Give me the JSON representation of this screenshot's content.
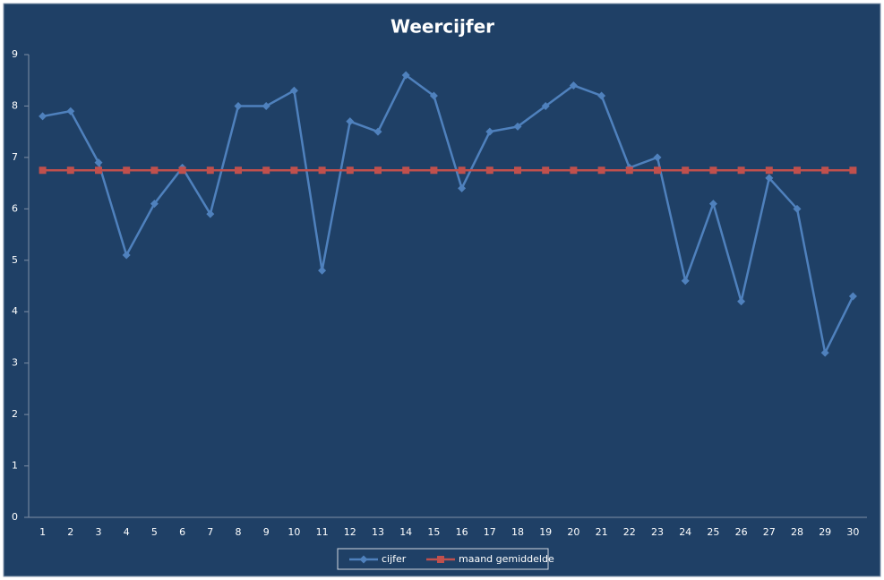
{
  "chart_data": {
    "type": "line",
    "title": "Weercijfer",
    "categories": [
      1,
      2,
      3,
      4,
      5,
      6,
      7,
      8,
      9,
      10,
      11,
      12,
      13,
      14,
      15,
      16,
      17,
      18,
      19,
      20,
      21,
      22,
      23,
      24,
      25,
      26,
      27,
      28,
      29,
      30
    ],
    "series": [
      {
        "name": "cijfer",
        "color": "#4f81bd",
        "marker": "diamond",
        "values": [
          7.8,
          7.9,
          6.9,
          5.1,
          6.1,
          6.8,
          5.9,
          8.0,
          8.0,
          8.3,
          4.8,
          7.7,
          7.5,
          8.6,
          8.2,
          6.4,
          7.5,
          7.6,
          8.0,
          8.4,
          8.2,
          6.8,
          7.0,
          4.6,
          6.1,
          4.2,
          6.6,
          6.0,
          3.2,
          4.3
        ]
      },
      {
        "name": "maand gemiddelde",
        "color": "#c0504d",
        "marker": "square",
        "values": [
          6.75,
          6.75,
          6.75,
          6.75,
          6.75,
          6.75,
          6.75,
          6.75,
          6.75,
          6.75,
          6.75,
          6.75,
          6.75,
          6.75,
          6.75,
          6.75,
          6.75,
          6.75,
          6.75,
          6.75,
          6.75,
          6.75,
          6.75,
          6.75,
          6.75,
          6.75,
          6.75,
          6.75,
          6.75,
          6.75
        ]
      }
    ],
    "ylim": [
      0,
      9
    ],
    "yticks": [
      0,
      1,
      2,
      3,
      4,
      5,
      6,
      7,
      8,
      9
    ],
    "grid": false,
    "legend": "bottom"
  }
}
